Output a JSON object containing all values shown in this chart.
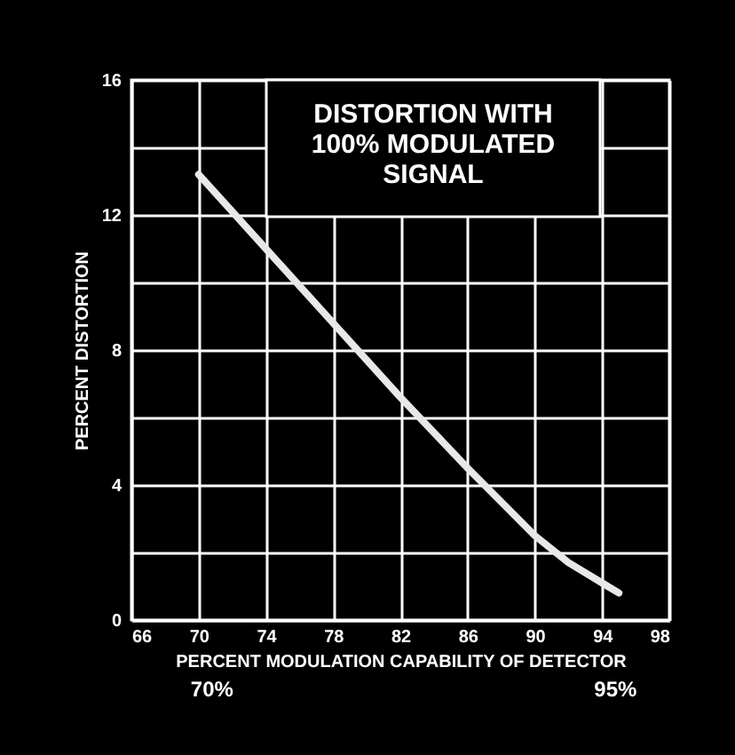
{
  "chart_data": {
    "type": "line",
    "title": "DISTORTION WITH\n100% MODULATED\nSIGNAL",
    "xlabel": "PERCENT MODULATION CAPABILITY OF DETECTOR",
    "ylabel": "PERCENT DISTORTION",
    "x": [
      70,
      74,
      78,
      82,
      86,
      90,
      92,
      94,
      95
    ],
    "series": [
      {
        "color": "#e8e8e8",
        "values": [
          13.2,
          11.0,
          8.8,
          6.6,
          4.5,
          2.5,
          1.7,
          1.1,
          0.8
        ]
      }
    ],
    "xlim": [
      66,
      98
    ],
    "xticks": [
      66,
      70,
      74,
      78,
      82,
      86,
      90,
      94,
      98
    ],
    "ylim": [
      0,
      16
    ],
    "yticks": [
      0,
      {
        "value": 2,
        "label": null
      },
      4,
      {
        "value": 6,
        "label": null
      },
      8,
      {
        "value": 10,
        "label": null
      },
      12,
      {
        "value": 14,
        "label": null
      },
      16
    ],
    "grid": true,
    "marker": "none",
    "line_style": "solid",
    "annotations": [
      "70%",
      "95%"
    ]
  }
}
